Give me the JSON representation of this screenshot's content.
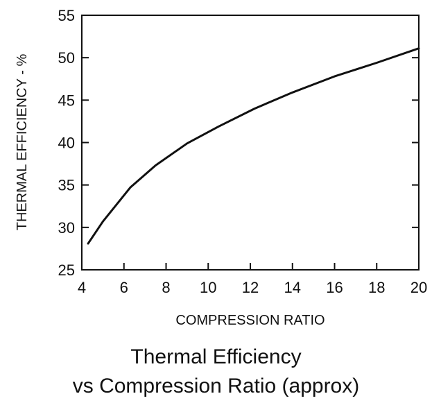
{
  "chart_data": {
    "type": "line",
    "title": "Thermal Efficiency",
    "subtitle": "vs Compression Ratio (approx)",
    "xlabel": "COMPRESSION RATIO",
    "ylabel": "THERMAL EFFICIENCY - %",
    "xlim": [
      4,
      20
    ],
    "ylim": [
      25,
      55
    ],
    "xticks": [
      4,
      6,
      8,
      10,
      12,
      14,
      16,
      18,
      20
    ],
    "yticks": [
      25,
      30,
      35,
      40,
      45,
      50,
      55
    ],
    "grid": false,
    "series": [
      {
        "x": [
          4.3,
          5.0,
          6.3,
          7.5,
          9.0,
          10.5,
          12.2,
          14.0,
          16.0,
          18.0,
          20.0
        ],
        "y": [
          28.1,
          30.7,
          34.7,
          37.3,
          39.9,
          41.9,
          44.0,
          45.9,
          47.8,
          49.4,
          51.1
        ]
      }
    ]
  }
}
